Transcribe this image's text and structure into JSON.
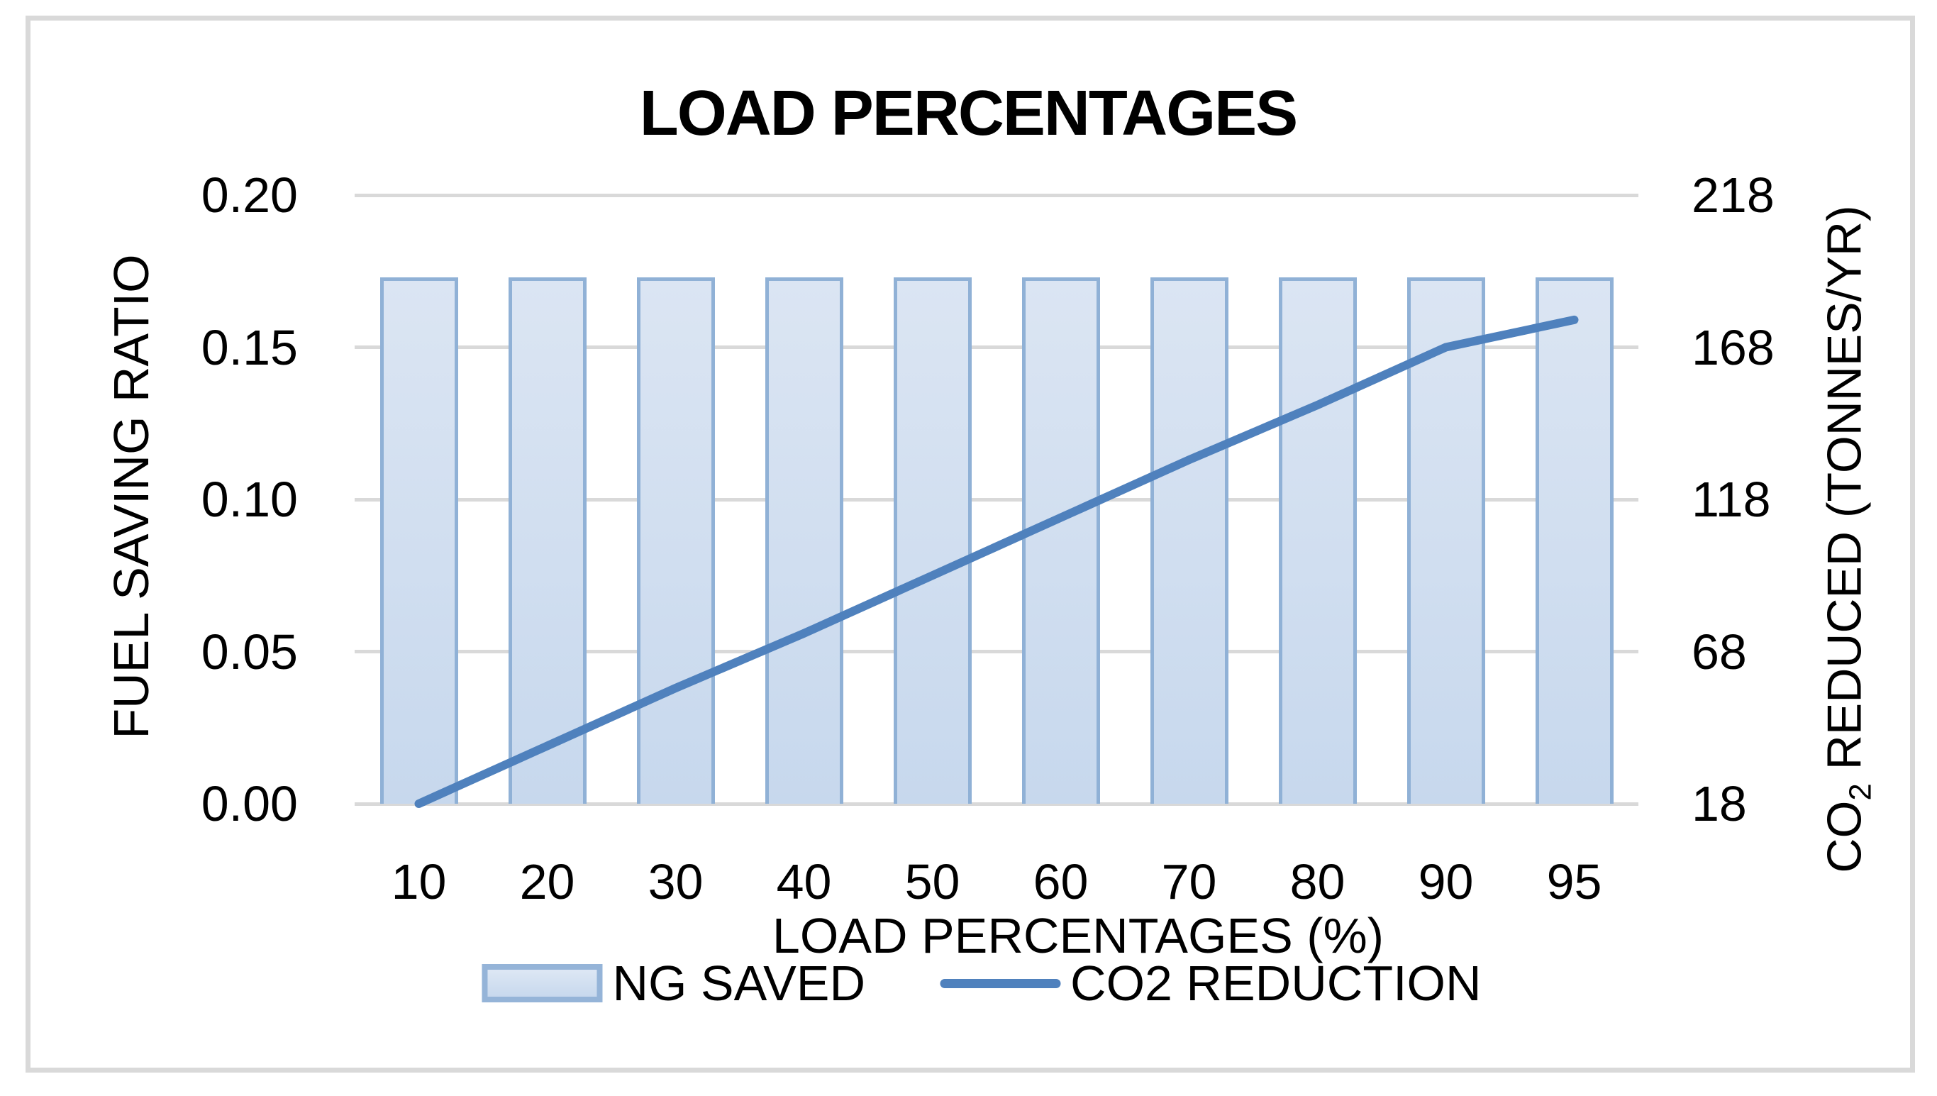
{
  "chart_data": {
    "type": "combo-bar-line",
    "title": "LOAD PERCENTAGES",
    "categories": [
      "10",
      "20",
      "30",
      "40",
      "50",
      "60",
      "70",
      "80",
      "90",
      "95"
    ],
    "xlabel": "LOAD PERCENTAGES (%)",
    "left_axis": {
      "label": "FUEL SAVING RATIO",
      "min": 0.0,
      "max": 0.2,
      "ticks": [
        "0.20",
        "0.15",
        "0.10",
        "0.05",
        "0.00"
      ]
    },
    "right_axis": {
      "label": "CO2 REDUCED (TONNES/YR)",
      "label_parts": {
        "prefix": "CO",
        "subscript": "2",
        "suffix": " REDUCED (TONNES/YR)"
      },
      "min": 18,
      "max": 218,
      "ticks": [
        "218",
        "168",
        "118",
        "68",
        "18"
      ]
    },
    "series": [
      {
        "name": "NG SAVED",
        "type": "bar",
        "axis": "left",
        "values": [
          0.173,
          0.173,
          0.173,
          0.173,
          0.173,
          0.173,
          0.173,
          0.173,
          0.173,
          0.173
        ]
      },
      {
        "name": "CO2 REDUCTION",
        "type": "line",
        "axis": "right",
        "values": [
          18,
          37,
          56,
          74,
          93,
          112,
          131,
          149,
          168,
          177
        ]
      }
    ],
    "grid": true,
    "legend_position": "bottom"
  },
  "colors": {
    "bar_fill_top": "#dbe5f3",
    "bar_fill_bottom": "#c7d8ed",
    "bar_border": "#90b1d6",
    "line": "#4f81bd",
    "gridline": "#d9d9d9",
    "frame": "#d9d9d9",
    "text": "#000000",
    "background": "#ffffff"
  }
}
